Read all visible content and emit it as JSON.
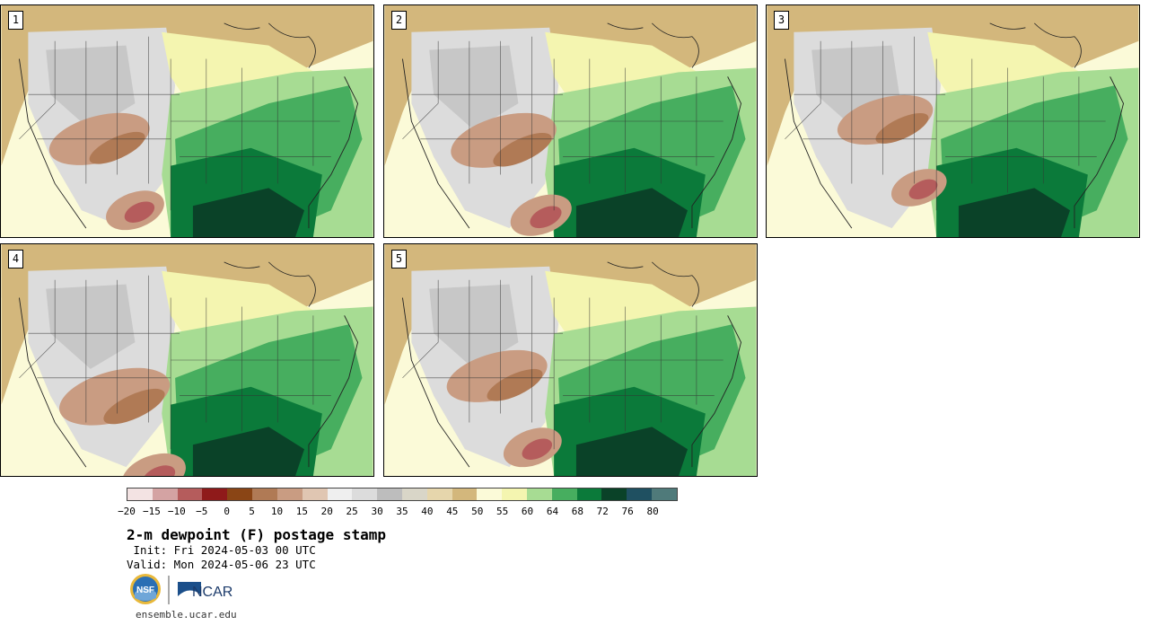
{
  "panels": [
    {
      "label": "1"
    },
    {
      "label": "2"
    },
    {
      "label": "3"
    },
    {
      "label": "4"
    },
    {
      "label": "5"
    }
  ],
  "colorbar": {
    "colors": [
      "#f3e3e3",
      "#d4a3a3",
      "#b55c5c",
      "#8f1a1a",
      "#8a4515",
      "#b07a55",
      "#c99c82",
      "#e0c6b2",
      "#efefef",
      "#dcdcdc",
      "#bdbdbd",
      "#d9d6c8",
      "#e6d6ac",
      "#d3b77c",
      "#fbfad8",
      "#f4f5b0",
      "#a7dc93",
      "#47ae5f",
      "#0b7a3a",
      "#0a4228",
      "#1f5061",
      "#4f7a7a"
    ],
    "ticks": [
      "−20",
      "−15",
      "−10",
      "−5",
      "0",
      "5",
      "10",
      "15",
      "20",
      "25",
      "30",
      "35",
      "40",
      "45",
      "50",
      "55",
      "60",
      "64",
      "68",
      "72",
      "76",
      "80"
    ]
  },
  "title": "2-m dewpoint (F) postage stamp",
  "init": " Init: Fri 2024-05-03 00 UTC",
  "valid": "Valid: Mon 2024-05-06 23 UTC",
  "logos": {
    "nsf": "NSF",
    "ncar": "NCAR"
  },
  "website": "ensemble.ucar.edu"
}
